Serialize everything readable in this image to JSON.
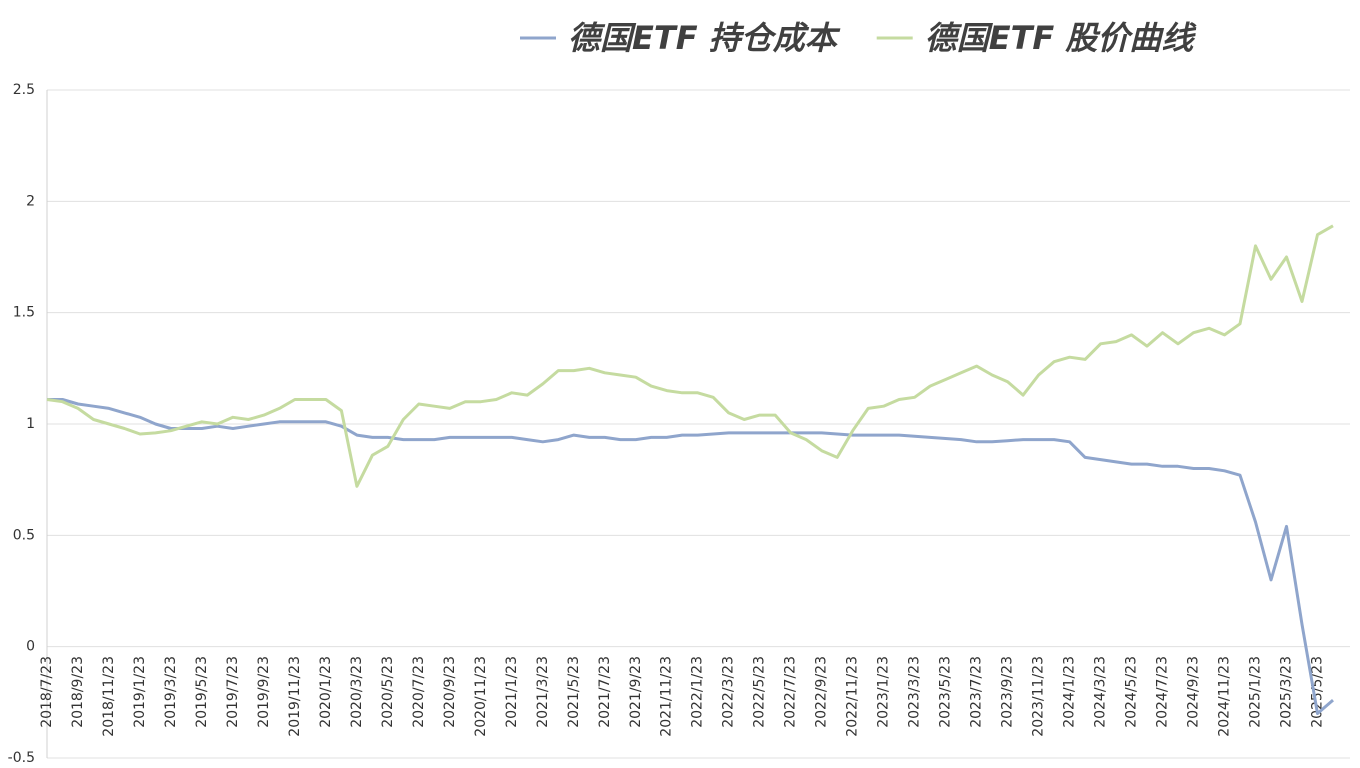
{
  "chart_data": {
    "type": "line",
    "categories": [
      "2018/7/23",
      null,
      "2018/9/23",
      null,
      "2018/11/23",
      null,
      "2019/1/23",
      null,
      "2019/3/23",
      null,
      "2019/5/23",
      null,
      "2019/7/23",
      null,
      "2019/9/23",
      null,
      "2019/11/23",
      null,
      "2020/1/23",
      null,
      "2020/3/23",
      null,
      "2020/5/23",
      null,
      "2020/7/23",
      null,
      "2020/9/23",
      null,
      "2020/11/23",
      null,
      "2021/1/23",
      null,
      "2021/3/23",
      null,
      "2021/5/23",
      null,
      "2021/7/23",
      null,
      "2021/9/23",
      null,
      "2021/11/23",
      null,
      "2022/1/23",
      null,
      "2022/3/23",
      null,
      "2022/5/23",
      null,
      "2022/7/23",
      null,
      "2022/9/23",
      null,
      "2022/11/23",
      null,
      "2023/1/23",
      null,
      "2023/3/23",
      null,
      "2023/5/23",
      null,
      "2023/7/23",
      null,
      "2023/9/23",
      null,
      "2023/11/23",
      null,
      "2024/1/23",
      null,
      "2024/3/23",
      null,
      "2024/5/23",
      null,
      "2024/7/23",
      null,
      "2024/9/23",
      null,
      "2024/11/23",
      null,
      "2025/1/23",
      null,
      "2025/3/23",
      null,
      "2025/5/23",
      null
    ],
    "series": [
      {
        "name": "德国ETF 持仓成本",
        "color": "#8fa5cc",
        "values": [
          1.11,
          1.11,
          1.09,
          1.08,
          1.07,
          1.05,
          1.03,
          1.0,
          0.98,
          0.98,
          0.98,
          0.99,
          0.98,
          0.99,
          1.0,
          1.01,
          1.01,
          1.01,
          1.01,
          0.99,
          0.95,
          0.94,
          0.94,
          0.93,
          0.93,
          0.93,
          0.94,
          0.94,
          0.94,
          0.94,
          0.94,
          0.93,
          0.92,
          0.93,
          0.95,
          0.94,
          0.94,
          0.93,
          0.93,
          0.94,
          0.94,
          0.95,
          0.95,
          0.955,
          0.96,
          0.96,
          0.96,
          0.96,
          0.96,
          0.96,
          0.96,
          0.955,
          0.95,
          0.95,
          0.95,
          0.95,
          0.945,
          0.94,
          0.935,
          0.93,
          0.92,
          0.92,
          0.925,
          0.93,
          0.93,
          0.93,
          0.92,
          0.85,
          0.84,
          0.83,
          0.82,
          0.82,
          0.81,
          0.81,
          0.8,
          0.8,
          0.79,
          0.77,
          0.56,
          0.3,
          0.54,
          0.1,
          -0.3,
          -0.24
        ]
      },
      {
        "name": "德国ETF 股价曲线",
        "color": "#c5dba0",
        "values": [
          1.11,
          1.1,
          1.07,
          1.02,
          1.0,
          0.98,
          0.955,
          0.96,
          0.97,
          0.99,
          1.01,
          1.0,
          1.03,
          1.02,
          1.04,
          1.07,
          1.11,
          1.11,
          1.11,
          1.06,
          0.72,
          0.86,
          0.9,
          1.02,
          1.09,
          1.08,
          1.07,
          1.1,
          1.1,
          1.11,
          1.14,
          1.13,
          1.18,
          1.24,
          1.24,
          1.25,
          1.23,
          1.22,
          1.21,
          1.17,
          1.15,
          1.14,
          1.14,
          1.12,
          1.05,
          1.02,
          1.04,
          1.04,
          0.96,
          0.93,
          0.88,
          0.85,
          0.97,
          1.07,
          1.08,
          1.11,
          1.12,
          1.17,
          1.2,
          1.23,
          1.26,
          1.22,
          1.19,
          1.13,
          1.22,
          1.28,
          1.3,
          1.29,
          1.36,
          1.37,
          1.4,
          1.35,
          1.41,
          1.36,
          1.41,
          1.43,
          1.4,
          1.45,
          1.8,
          1.65,
          1.75,
          1.55,
          1.85,
          1.89
        ]
      }
    ],
    "ylim": [
      -0.5,
      2.5
    ],
    "yticks": [
      -0.5,
      0,
      0.5,
      1,
      1.5,
      2,
      2.5
    ],
    "grid": true,
    "legend": "top"
  }
}
